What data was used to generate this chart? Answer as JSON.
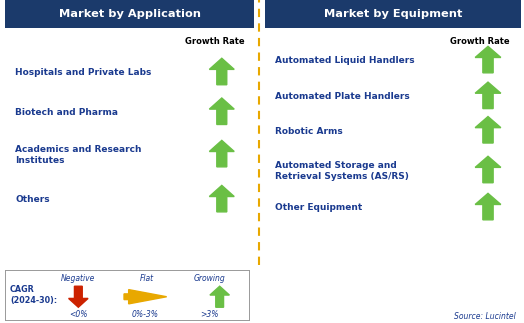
{
  "left_title": "Market by Application",
  "right_title": "Market by Equipment",
  "growth_rate_label": "Growth Rate",
  "left_items": [
    "Hospitals and Private Labs",
    "Biotech and Pharma",
    "Academics and Research\nInstitutes",
    "Others"
  ],
  "right_items": [
    "Automated Liquid Handlers",
    "Automated Plate Handlers",
    "Robotic Arms",
    "Automated Storage and\nRetrieval Systems (AS/RS)",
    "Other Equipment"
  ],
  "header_bg": "#1b3a6b",
  "header_fg": "#ffffff",
  "item_color": "#1a3a8f",
  "divider_color": "#e8a800",
  "green_arrow_color": "#6abf45",
  "red_arrow_color": "#cc2200",
  "orange_arrow_color": "#e8a800",
  "source_text": "Source: Lucintel",
  "legend_label": "CAGR\n(2024-30):",
  "legend_negative": "Negative",
  "legend_negative_range": "<0%",
  "legend_flat": "Flat",
  "legend_flat_range": "0%-3%",
  "legend_growing": "Growing",
  "legend_growing_range": ">3%",
  "bg_color": "#ffffff"
}
